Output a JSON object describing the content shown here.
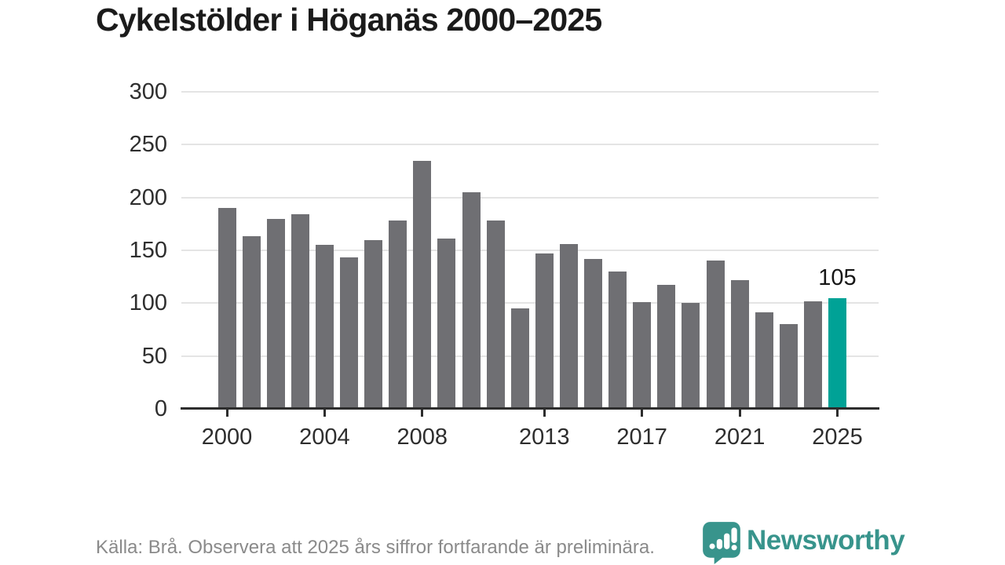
{
  "header": {
    "title": "Cykelstölder i Höganäs 2000–2025"
  },
  "chart_data": {
    "type": "bar",
    "title": "Cykelstölder i Höganäs 2000–2025",
    "categories": [
      2000,
      2001,
      2002,
      2003,
      2004,
      2005,
      2006,
      2007,
      2008,
      2009,
      2010,
      2011,
      2012,
      2013,
      2014,
      2015,
      2016,
      2017,
      2018,
      2019,
      2020,
      2021,
      2022,
      2023,
      2024,
      2025
    ],
    "values": [
      190,
      163,
      180,
      184,
      155,
      143,
      160,
      178,
      235,
      161,
      205,
      178,
      95,
      147,
      156,
      142,
      130,
      101,
      117,
      100,
      140,
      122,
      91,
      80,
      102,
      105
    ],
    "ylim": [
      0,
      300
    ],
    "y_ticks": [
      0,
      50,
      100,
      150,
      200,
      250,
      300
    ],
    "x_tick_labels": [
      "2000",
      "2004",
      "2008",
      "2013",
      "2017",
      "2021",
      "2025"
    ],
    "grid": "horizontal",
    "legend": "none",
    "highlight": {
      "year": 2025,
      "value_label": "105"
    },
    "bar_color": "#6f6f73",
    "highlight_color": "#00a296"
  },
  "footer": {
    "source_note": "Källa: Brå. Observera att 2025 års siffror fortfarande är preliminära."
  },
  "branding": {
    "name": "Newsworthy",
    "icon": "newsworthy-bubble-barchart-icon",
    "color": "#38948c"
  }
}
